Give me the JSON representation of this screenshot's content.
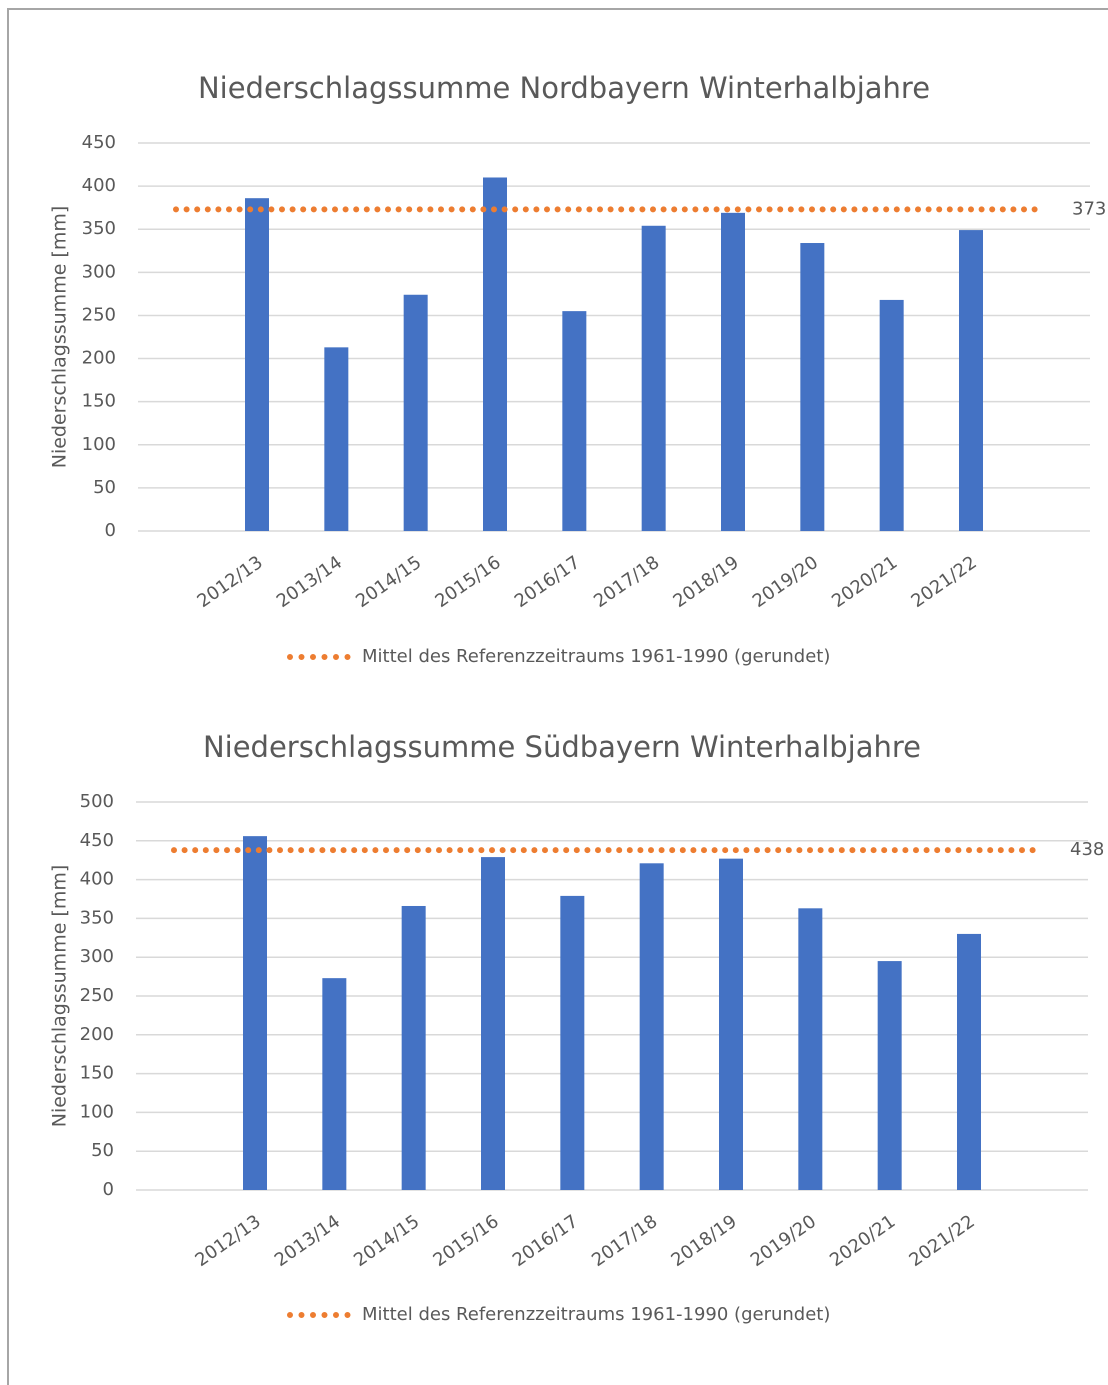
{
  "chart_data": [
    {
      "type": "bar",
      "title": "Niederschlagssumme Nordbayern Winterhalbjahre",
      "y_label": "Niederschlagssumme [mm]",
      "categories": [
        "2012/13",
        "2013/14",
        "2014/15",
        "2015/16",
        "2016/17",
        "2017/18",
        "2018/19",
        "2019/20",
        "2020/21",
        "2021/22"
      ],
      "values": [
        386,
        213,
        274,
        410,
        255,
        354,
        369,
        334,
        268,
        349
      ],
      "color": "#4472c4",
      "reference_line": {
        "name": "Mittel des Referenzzeitraums 1961-1990 (gerundet)",
        "value": 373,
        "color": "#ed7d31"
      },
      "ylim": [
        0,
        450
      ],
      "yticks": [
        0,
        50,
        100,
        150,
        200,
        250,
        300,
        350,
        400,
        450
      ],
      "grid": true,
      "legend": "bottom"
    },
    {
      "type": "bar",
      "title": "Niederschlagssumme Südbayern Winterhalbjahre",
      "y_label": "Niederschlagssumme [mm]",
      "categories": [
        "2012/13",
        "2013/14",
        "2014/15",
        "2015/16",
        "2016/17",
        "2017/18",
        "2018/19",
        "2019/20",
        "2020/21",
        "2021/22"
      ],
      "values": [
        456,
        273,
        366,
        429,
        379,
        421,
        427,
        363,
        295,
        330
      ],
      "color": "#4472c4",
      "reference_line": {
        "name": "Mittel des Referenzzeitraums 1961-1990 (gerundet)",
        "value": 438,
        "color": "#ed7d31"
      },
      "ylim": [
        0,
        500
      ],
      "yticks": [
        0,
        50,
        100,
        150,
        200,
        250,
        300,
        350,
        400,
        450,
        500
      ],
      "grid": true,
      "legend": "bottom"
    }
  ]
}
